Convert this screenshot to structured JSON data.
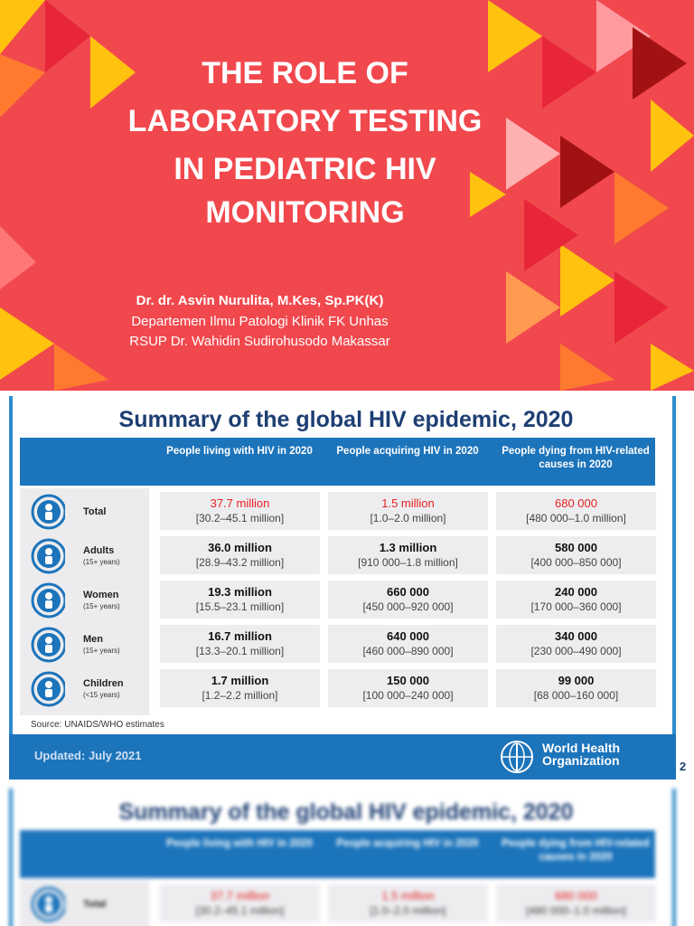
{
  "title_slide": {
    "title_lines": [
      "THE ROLE OF",
      "LABORATORY TESTING",
      "IN PEDIATRIC HIV",
      "MONITORING"
    ],
    "author": "Dr. dr. Asvin Nurulita, M.Kes, Sp.PK(K)",
    "department": "Departemen Ilmu Patologi Klinik FK Unhas",
    "hospital": "RSUP Dr. Wahidin Sudirohusodo Makassar"
  },
  "summary_slide": {
    "title": "Summary of the global HIV epidemic, 2020",
    "columns": [
      "People living with HIV in 2020",
      "People acquiring HIV in 2020",
      "People dying from HIV-related causes in 2020"
    ],
    "rows": [
      {
        "label": "Total",
        "cells": [
          [
            "37.7 million",
            "[30.2–45.1 million]"
          ],
          [
            "1.5 million",
            "[1.0–2.0 million]"
          ],
          [
            "680 000",
            "[480 000–1.0 million]"
          ]
        ]
      },
      {
        "label": "Adults",
        "sublabel": "(15+ years)",
        "cells": [
          [
            "36.0 million",
            "[28.9–43.2 million]"
          ],
          [
            "1.3 million",
            "[910 000–1.8 million]"
          ],
          [
            "580 000",
            "[400 000–850 000]"
          ]
        ]
      },
      {
        "label": "Women",
        "sublabel": "(15+ years)",
        "cells": [
          [
            "19.3 million",
            "[15.5–23.1 million]"
          ],
          [
            "660 000",
            "[450 000–920 000]"
          ],
          [
            "240 000",
            "[170 000–360 000]"
          ]
        ]
      },
      {
        "label": "Men",
        "sublabel": "(15+ years)",
        "cells": [
          [
            "16.7 million",
            "[13.3–20.1 million]"
          ],
          [
            "640 000",
            "[460 000–890 000]"
          ],
          [
            "340 000",
            "[230 000–490 000]"
          ]
        ]
      },
      {
        "label": "Children",
        "sublabel": "(<15 years)",
        "cells": [
          [
            "1.7 million",
            "[1.2–2.2 million]"
          ],
          [
            "150 000",
            "[100 000–240 000]"
          ],
          [
            "99 000",
            "[68 000–160 000]"
          ]
        ]
      }
    ],
    "source": "Source: UNAIDS/WHO estimates",
    "updated": "Updated: July 2021",
    "organization": [
      "World Health",
      "Organization"
    ],
    "page_number": "2"
  },
  "preview_slide": {
    "title": "Summary of the global HIV epidemic, 2020",
    "columns": [
      "People living with HIV in 2020",
      "People acquiring HIV in 2020",
      "People dying from HIV-related causes in 2020"
    ],
    "row": {
      "label": "Total",
      "cells": [
        [
          "37.7 million",
          "[30.2–45.1 million]"
        ],
        [
          "1.5 million",
          "[1.0–2.0 million]"
        ],
        [
          "680 000",
          "[480 000–1.0 million]"
        ]
      ]
    }
  }
}
